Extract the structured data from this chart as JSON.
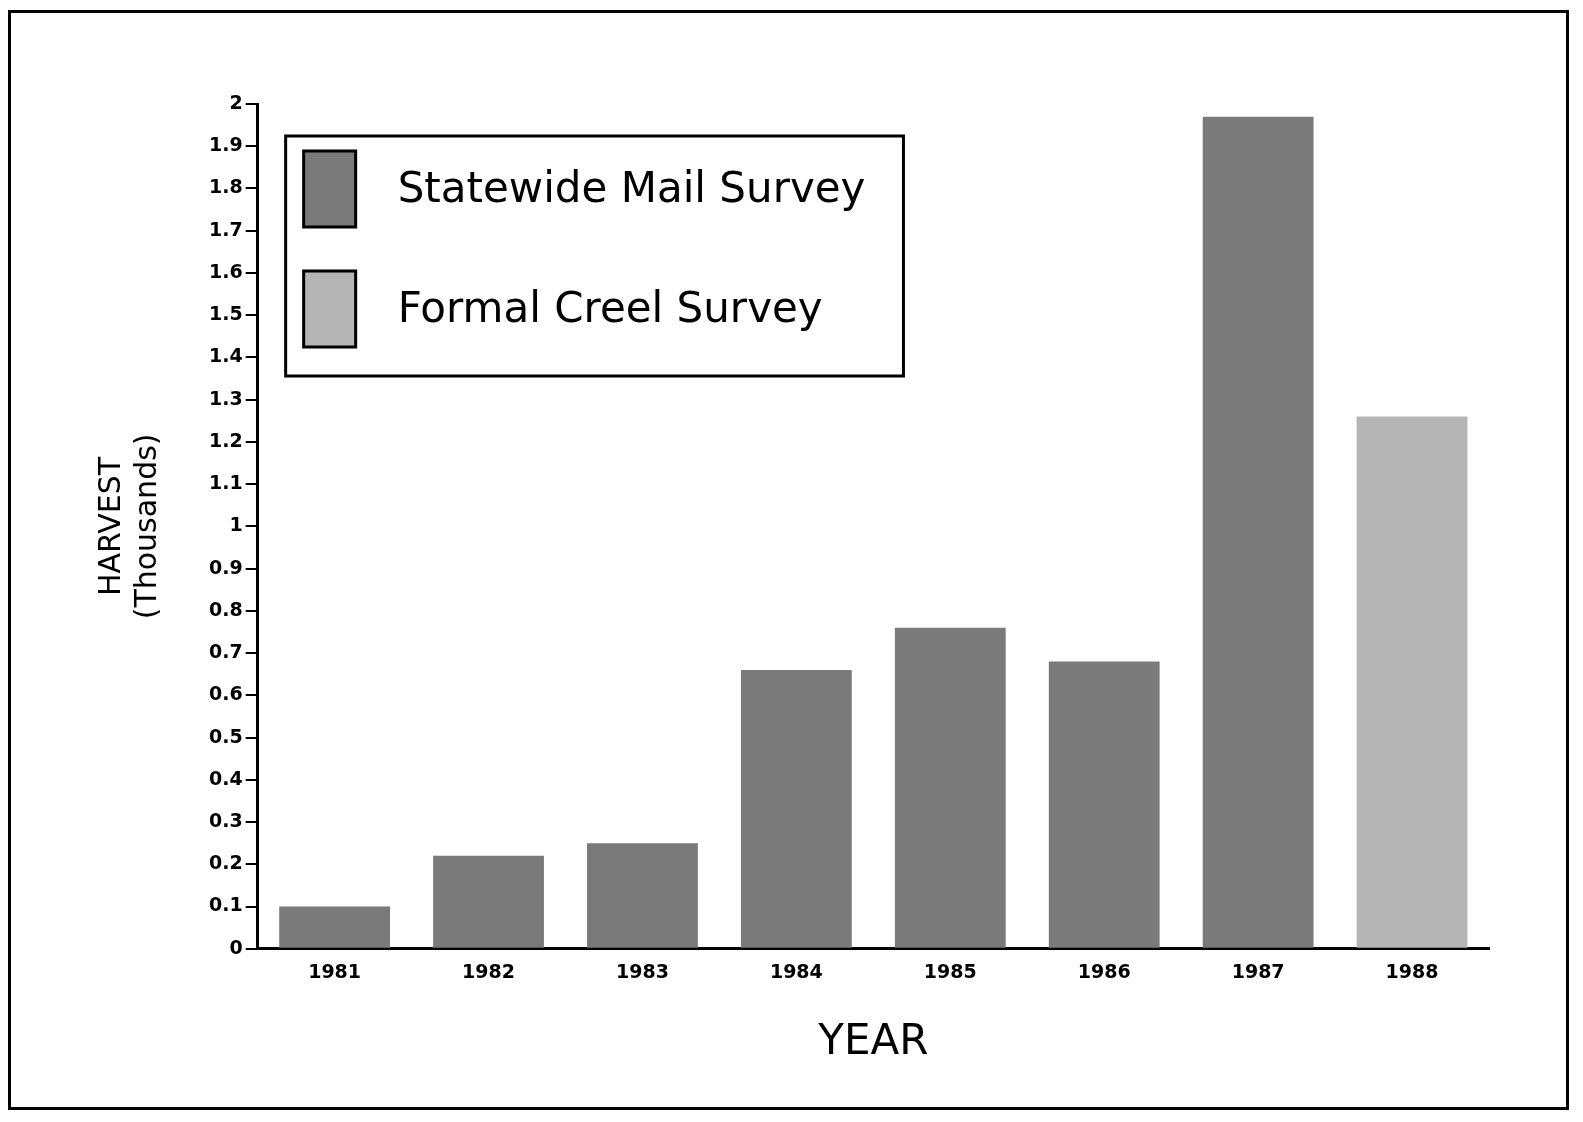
{
  "chart_data": {
    "type": "bar",
    "xlabel": "YEAR",
    "ylabel": "HARVEST\n(Thousands)",
    "categories": [
      "1981",
      "1982",
      "1983",
      "1984",
      "1985",
      "1986",
      "1987",
      "1988"
    ],
    "series": [
      {
        "name": "Statewide Mail Survey",
        "color": "#7a7a7a",
        "values": [
          0.1,
          0.22,
          0.25,
          0.66,
          0.76,
          0.68,
          1.97,
          null
        ]
      },
      {
        "name": "Formal Creel Survey",
        "color": "#b5b5b5",
        "values": [
          null,
          null,
          null,
          null,
          null,
          null,
          null,
          1.26
        ]
      }
    ],
    "ylim": [
      0,
      2
    ],
    "yticks": [
      0,
      0.1,
      0.2,
      0.3,
      0.4,
      0.5,
      0.6,
      0.7,
      0.8,
      0.9,
      1,
      1.1,
      1.2,
      1.3,
      1.4,
      1.5,
      1.6,
      1.7,
      1.8,
      1.9,
      2
    ],
    "grid": false,
    "legend": "top left"
  }
}
